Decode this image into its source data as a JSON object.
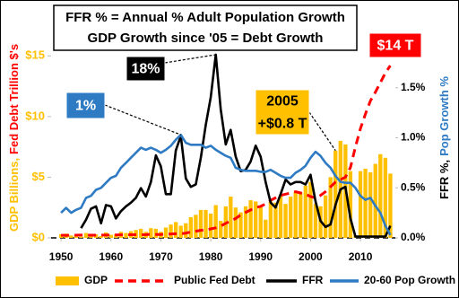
{
  "chart_data": {
    "type": "combo",
    "title": "FFR % = Annual % Adult Population Growth",
    "subtitle": "GDP Growth since '05 = Debt Growth",
    "ylabel": [
      {
        "text": "GDP Billions,",
        "color": "#FFC000"
      },
      {
        "text": "Fed Debt Trillion $'s",
        "color": "#FF0000"
      }
    ],
    "y2label": [
      {
        "text": "FFR %,",
        "color": "#000000"
      },
      {
        "text": "Pop Growth %",
        "color": "#2E7BC4"
      }
    ],
    "x": [
      1950,
      1951,
      1952,
      1953,
      1954,
      1955,
      1956,
      1957,
      1958,
      1959,
      1960,
      1961,
      1962,
      1963,
      1964,
      1965,
      1966,
      1967,
      1968,
      1969,
      1970,
      1971,
      1972,
      1973,
      1974,
      1975,
      1976,
      1977,
      1978,
      1979,
      1980,
      1981,
      1982,
      1983,
      1984,
      1985,
      1986,
      1987,
      1988,
      1989,
      1990,
      1991,
      1992,
      1993,
      1994,
      1995,
      1996,
      1997,
      1998,
      1999,
      2000,
      2001,
      2002,
      2003,
      2004,
      2005,
      2006,
      2007,
      2008,
      2009,
      2010,
      2011,
      2012,
      2013,
      2014,
      2015,
      2016
    ],
    "xlim": [
      1948,
      2017
    ],
    "xticks": [
      1950,
      1960,
      1970,
      1980,
      1990,
      2000,
      2010
    ],
    "ylim": [
      0,
      16.5
    ],
    "yticks": [
      {
        "value": 0,
        "label": "$0"
      },
      {
        "value": 5,
        "label": "$5"
      },
      {
        "value": 10,
        "label": "$10"
      },
      {
        "value": 15,
        "label": "$15"
      }
    ],
    "y2lim": [
      0,
      2.0
    ],
    "y2ticks": [
      {
        "value": 0,
        "label": "0.0%"
      },
      {
        "value": 0.5,
        "label": "0.5%"
      },
      {
        "value": 1.0,
        "label": "1.0%"
      },
      {
        "value": 1.5,
        "label": "1.5%"
      }
    ],
    "legend": "bottom",
    "series": [
      {
        "name": "GDP",
        "type": "bar",
        "color": "#FFC000",
        "values": [
          0.3,
          0.35,
          0.2,
          0.25,
          0.1,
          0.4,
          0.3,
          0.3,
          0.15,
          0.45,
          0.25,
          0.3,
          0.5,
          0.4,
          0.55,
          0.65,
          0.75,
          0.5,
          0.8,
          0.75,
          0.5,
          0.85,
          1.1,
          1.3,
          1.0,
          1.2,
          1.7,
          1.9,
          2.3,
          2.3,
          2.0,
          2.7,
          1.4,
          2.6,
          3.4,
          2.5,
          2.1,
          2.6,
          3.1,
          3.0,
          2.6,
          1.5,
          3.0,
          2.9,
          3.5,
          2.8,
          3.4,
          3.8,
          3.7,
          4.3,
          4.6,
          2.8,
          2.6,
          3.5,
          5.0,
          7.2,
          8.0,
          7.7,
          5.5,
          0.2,
          5.5,
          5.7,
          5.4,
          6.1,
          6.9,
          6.6,
          5.3
        ]
      },
      {
        "name": "Public Fed Debt",
        "type": "dashed-line",
        "color": "#FF0000",
        "values": [
          0.22,
          0.21,
          0.22,
          0.22,
          0.23,
          0.23,
          0.22,
          0.22,
          0.23,
          0.23,
          0.24,
          0.24,
          0.25,
          0.25,
          0.26,
          0.26,
          0.26,
          0.27,
          0.29,
          0.28,
          0.28,
          0.3,
          0.32,
          0.34,
          0.34,
          0.39,
          0.48,
          0.55,
          0.62,
          0.66,
          0.74,
          0.83,
          0.98,
          1.2,
          1.4,
          1.6,
          1.9,
          2.1,
          2.3,
          2.5,
          2.6,
          2.8,
          3.1,
          3.3,
          3.5,
          3.6,
          3.7,
          3.8,
          3.7,
          3.6,
          3.4,
          3.3,
          3.5,
          3.8,
          4.2,
          4.6,
          4.8,
          5.0,
          5.8,
          7.5,
          9.0,
          10.2,
          11.3,
          12.0,
          12.8,
          13.6,
          14.2
        ]
      },
      {
        "name": "FFR",
        "type": "line",
        "color": "#000000",
        "values": [
          null,
          null,
          null,
          null,
          0.8,
          1.5,
          2.4,
          2.6,
          1.2,
          2.7,
          2.6,
          1.6,
          2.2,
          2.6,
          2.9,
          3.3,
          4.1,
          3.4,
          4.6,
          6.8,
          5.9,
          3.6,
          3.6,
          7.2,
          8.4,
          4.9,
          4.2,
          4.4,
          6.6,
          9.3,
          11.6,
          15.1,
          10.6,
          7.7,
          8.9,
          6.7,
          5.5,
          5.6,
          6.3,
          7.6,
          6.7,
          4.6,
          2.9,
          2.5,
          3.6,
          4.8,
          4.4,
          4.6,
          4.6,
          4.4,
          5.2,
          3.0,
          1.4,
          0.9,
          1.1,
          2.7,
          4.0,
          4.2,
          1.6,
          0.1,
          0.1,
          0.1,
          0.1,
          0.1,
          0.1,
          0.1,
          1.0
        ]
      },
      {
        "name": "20-60 Pop Growth (%)",
        "type": "line",
        "axis": "y2",
        "color": "#2E7BC4",
        "values": [
          0.25,
          0.3,
          0.25,
          0.28,
          0.3,
          0.4,
          0.42,
          0.48,
          0.5,
          0.55,
          0.6,
          0.62,
          0.7,
          0.75,
          0.8,
          0.85,
          0.9,
          0.88,
          0.9,
          0.88,
          0.85,
          0.88,
          0.92,
          0.98,
          1.03,
          0.95,
          0.93,
          0.93,
          0.93,
          0.9,
          0.92,
          0.88,
          0.85,
          0.82,
          0.8,
          0.7,
          0.68,
          0.67,
          0.67,
          0.67,
          0.66,
          0.66,
          0.68,
          0.65,
          0.62,
          0.6,
          0.6,
          0.65,
          0.68,
          0.72,
          0.8,
          0.86,
          0.82,
          0.75,
          0.7,
          0.62,
          0.56,
          0.55,
          0.55,
          0.5,
          0.42,
          0.38,
          0.4,
          0.32,
          0.25,
          0.12,
          0.03
        ]
      }
    ],
    "annotations": [
      {
        "lines": [
          "18%"
        ],
        "color": "#000000",
        "text_color": "#FFFFFF"
      },
      {
        "lines": [
          "1%"
        ],
        "color": "#2E7BC4",
        "text_color": "#FFFFFF"
      },
      {
        "lines": [
          "2005",
          "+$0.8 T"
        ],
        "color": "#FFC000",
        "text_color": "#000000"
      },
      {
        "lines": [
          "$14 T"
        ],
        "color": "#FF0000",
        "text_color": "#FFFFFF"
      }
    ]
  }
}
